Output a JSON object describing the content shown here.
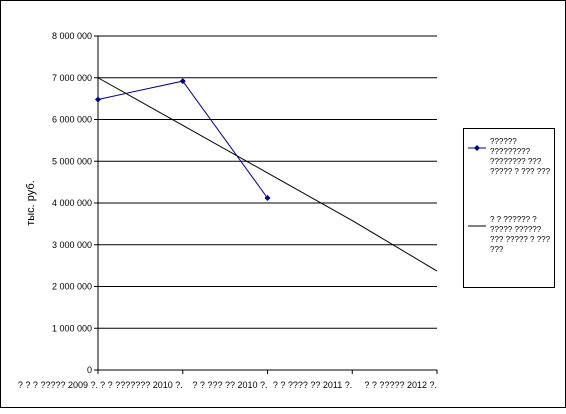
{
  "chart_data": {
    "type": "line",
    "title": "",
    "ylabel": "тыс. руб.",
    "xlabel": "",
    "ylim": [
      0,
      8000000
    ],
    "yticks": [
      0,
      1000000,
      2000000,
      3000000,
      4000000,
      5000000,
      6000000,
      7000000,
      8000000
    ],
    "ytick_labels": [
      "0",
      "1 000 000",
      "2 000 000",
      "3 000 000",
      "4 000 000",
      "5 000 000",
      "6 000 000",
      "7 000 000",
      "8 000 000"
    ],
    "categories": [
      "? ? ? ????? 2009 ?.",
      "? ? ??????? 2010 ?.",
      "? ? ??? ?? 2010 ?.",
      "? ? ???? ?? 2011 ?.",
      "? ? ????? 2012 ?."
    ],
    "grid": "horizontal",
    "legend_position": "right",
    "series": [
      {
        "name": "?????? ????????? ???????? ??? ????? ? ??? ???",
        "color": "#000080",
        "marker": "diamond",
        "values": [
          6480000,
          6920000,
          4120000,
          null,
          null
        ]
      },
      {
        "name": "? ? ?????? ? ????? ?????? ??? ????? ? ??? ???",
        "color": "#000000",
        "marker": "none",
        "x_range": [
          0,
          4
        ],
        "values": [
          7000000,
          5860000,
          4720000,
          3580000,
          2370000
        ]
      }
    ]
  }
}
